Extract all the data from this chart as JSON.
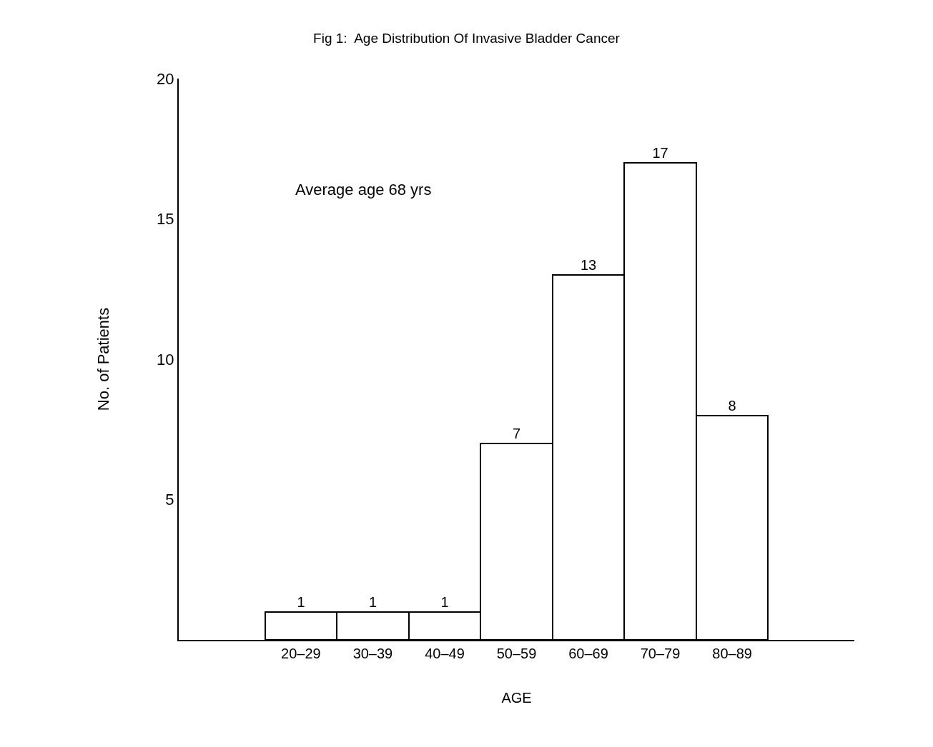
{
  "chart_data": {
    "type": "bar",
    "title": "Fig 1:  Age Distribution Of Invasive Bladder Cancer",
    "xlabel": "AGE",
    "ylabel": "No. of Patients",
    "categories": [
      "20–29",
      "30–39",
      "40–49",
      "50–59",
      "60–69",
      "70–79",
      "80–89"
    ],
    "values": [
      1,
      1,
      1,
      7,
      13,
      17,
      8
    ],
    "color": "#ffffff",
    "ylim": [
      0,
      20
    ],
    "yticks": [
      5,
      10,
      15,
      20
    ],
    "data_labels": true,
    "legend": false,
    "annotations": [
      "Average age 68 yrs"
    ]
  }
}
